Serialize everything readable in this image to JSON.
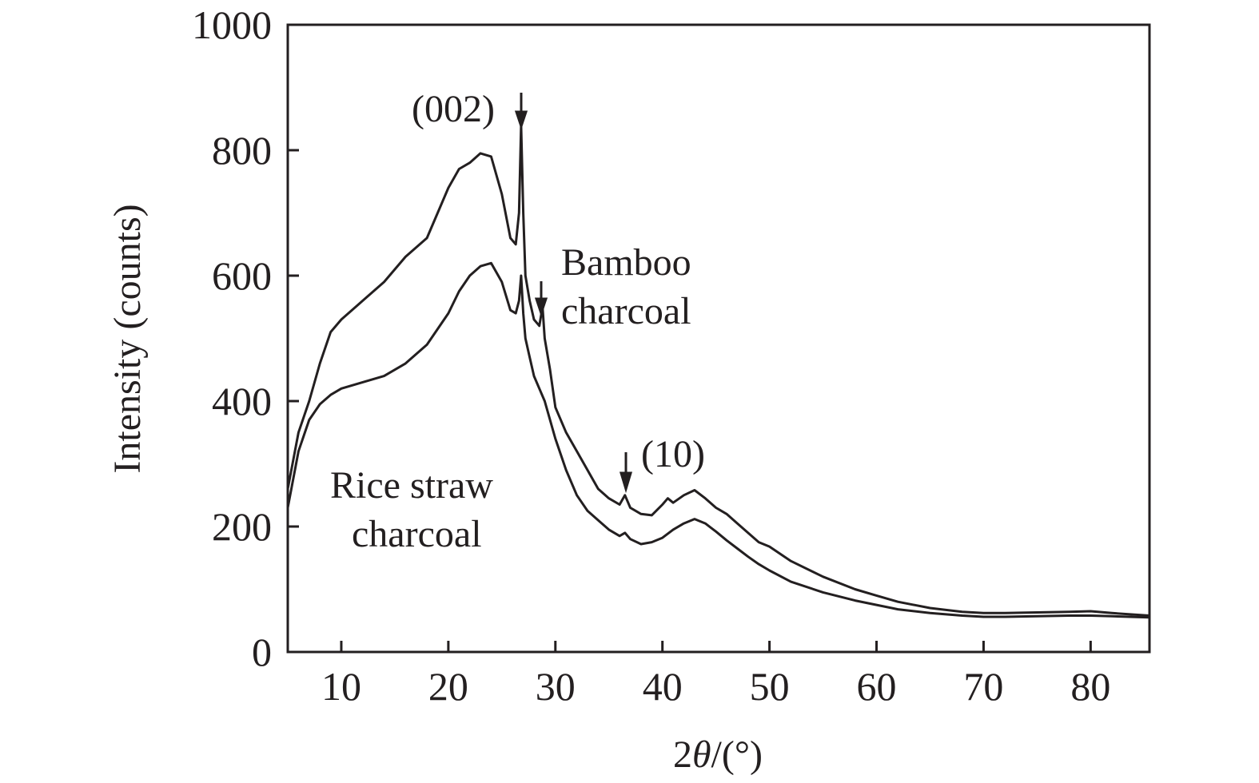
{
  "chart_data": {
    "type": "line",
    "title": "",
    "xlabel_prefix": "2",
    "xlabel_theta": "θ",
    "xlabel_suffix": "/(°)",
    "ylabel": "Intensity (counts)",
    "xlim": [
      5,
      85.5
    ],
    "ylim": [
      0,
      1000
    ],
    "xticks": [
      10,
      20,
      30,
      40,
      50,
      60,
      70,
      80
    ],
    "yticks": [
      0,
      200,
      400,
      600,
      800,
      1000
    ],
    "grid": false,
    "series": [
      {
        "name": "Bamboo charcoal",
        "x": [
          5,
          6,
          7,
          8,
          9,
          10,
          12,
          14,
          16,
          18,
          19,
          20,
          21,
          22,
          23,
          24,
          25,
          25.8,
          26.3,
          26.6,
          26.8,
          27.0,
          27.2,
          27.6,
          28.0,
          28.5,
          28.8,
          29.0,
          29.5,
          30,
          31,
          32,
          33,
          34,
          35,
          36,
          36.5,
          37,
          38,
          39,
          40,
          40.5,
          41,
          42,
          43,
          44,
          45,
          46,
          47,
          48,
          49,
          50,
          52,
          55,
          58,
          60,
          62,
          65,
          68,
          70,
          72,
          75,
          78,
          80,
          82,
          85.5
        ],
        "y": [
          260,
          350,
          400,
          460,
          510,
          530,
          560,
          590,
          630,
          660,
          700,
          740,
          770,
          780,
          795,
          790,
          730,
          660,
          650,
          700,
          840,
          700,
          600,
          560,
          530,
          520,
          550,
          500,
          450,
          390,
          350,
          320,
          290,
          260,
          245,
          235,
          250,
          230,
          220,
          218,
          235,
          245,
          238,
          250,
          258,
          245,
          230,
          220,
          205,
          190,
          175,
          168,
          145,
          120,
          100,
          90,
          80,
          70,
          64,
          62,
          62,
          63,
          64,
          65,
          62,
          58
        ]
      },
      {
        "name": "Rice straw charcoal",
        "x": [
          5,
          6,
          7,
          8,
          9,
          10,
          12,
          14,
          16,
          18,
          20,
          21,
          22,
          23,
          24,
          25,
          25.8,
          26.3,
          26.6,
          26.8,
          27.0,
          27.2,
          27.6,
          28.0,
          28.5,
          29,
          30,
          31,
          32,
          33,
          34,
          35,
          36,
          36.5,
          37,
          38,
          39,
          40,
          41,
          42,
          43,
          44,
          45,
          46,
          47,
          48,
          49,
          50,
          52,
          55,
          58,
          60,
          62,
          65,
          68,
          70,
          72,
          75,
          78,
          80,
          82,
          85.5
        ],
        "y": [
          230,
          320,
          370,
          395,
          410,
          420,
          430,
          440,
          460,
          490,
          540,
          575,
          600,
          615,
          620,
          590,
          545,
          540,
          560,
          600,
          540,
          500,
          470,
          440,
          420,
          400,
          340,
          290,
          250,
          225,
          210,
          195,
          185,
          190,
          180,
          172,
          175,
          182,
          195,
          205,
          212,
          205,
          192,
          178,
          165,
          152,
          140,
          130,
          112,
          95,
          82,
          75,
          68,
          62,
          58,
          56,
          56,
          57,
          58,
          58,
          57,
          55
        ]
      }
    ],
    "annotations": {
      "peak002": "(002)",
      "peak10": "(10)",
      "bamboo_line1": "Bamboo",
      "bamboo_line2": "charcoal",
      "rice_line1": "Rice straw",
      "rice_line2": "charcoal"
    }
  }
}
